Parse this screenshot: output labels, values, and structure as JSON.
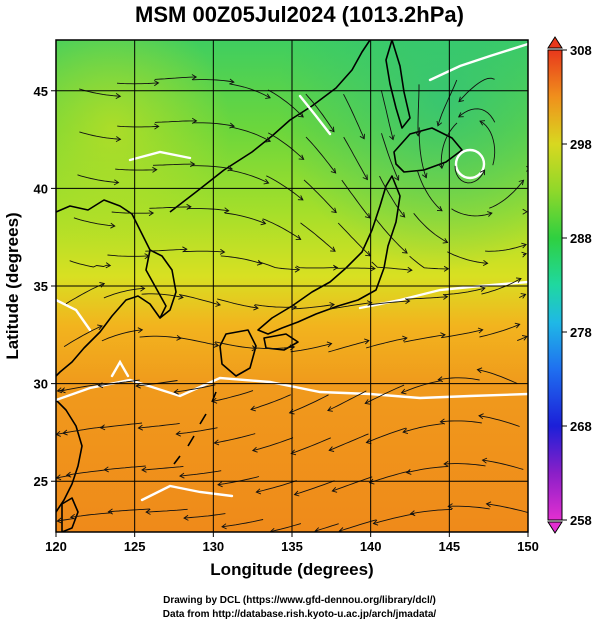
{
  "title": "MSM 00Z05Jul2024 (1013.2hPa)",
  "map": {
    "x_label": "Longitude (degrees)",
    "y_label": "Latitude  (degrees)",
    "x_range": [
      120,
      150
    ],
    "y_range": [
      22.4,
      47.6
    ],
    "x_ticks": [
      "120",
      "125",
      "130",
      "135",
      "140",
      "145",
      "150"
    ],
    "x_tick_values": [
      120,
      125,
      130,
      135,
      140,
      145,
      150
    ],
    "y_ticks": [
      "25",
      "30",
      "35",
      "40",
      "45"
    ],
    "y_tick_values": [
      25,
      30,
      35,
      40,
      45
    ],
    "grid_spacing_deg": 5,
    "grid": true
  },
  "colorbar": {
    "min": 258,
    "max": 308,
    "tick_labels": [
      "308",
      "298",
      "288",
      "278",
      "268",
      "258"
    ],
    "tick_values": [
      308,
      298,
      288,
      278,
      268,
      258
    ]
  },
  "colors": {
    "grid": "#000000",
    "contour": "#ffffff",
    "streamline": "#111111"
  },
  "credits": {
    "line1": "Drawing by DCL (https://www.gfd-dennou.org/library/dcl/)",
    "line2": "Data from http://database.rish.kyoto-u.ac.jp/arch/jmadata/"
  }
}
